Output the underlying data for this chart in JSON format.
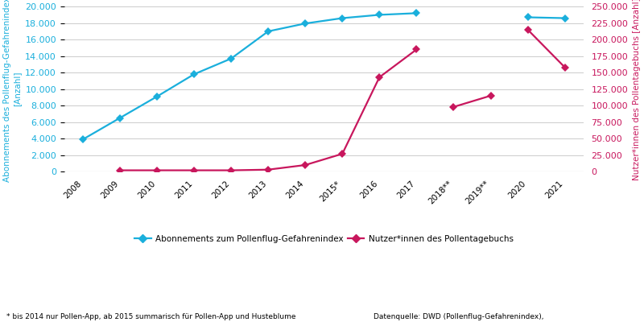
{
  "x_labels": [
    "2008",
    "2009",
    "2010",
    "2011",
    "2012",
    "2013",
    "2014",
    "2015*",
    "2016",
    "2017",
    "2018**",
    "2019**",
    "2020",
    "2021"
  ],
  "blue_segments": [
    {
      "x": [
        0,
        1,
        2,
        3,
        4,
        5,
        6,
        7,
        8,
        9
      ],
      "y": [
        3900,
        6500,
        9100,
        11800,
        13700,
        17000,
        17950,
        18600,
        19000,
        19200
      ]
    },
    {
      "x": [
        12,
        13
      ],
      "y": [
        18700,
        18600
      ]
    }
  ],
  "red_segments": [
    {
      "x": [
        1,
        2,
        3,
        4,
        5,
        6,
        7,
        8,
        9
      ],
      "y": [
        2000,
        2000,
        2000,
        2000,
        3000,
        10000,
        27000,
        143000,
        185000
      ]
    },
    {
      "x": [
        10,
        11
      ],
      "y": [
        98000,
        115000
      ]
    },
    {
      "x": [
        12,
        13
      ],
      "y": [
        215000,
        158000
      ]
    }
  ],
  "left_ylim": [
    0,
    20000
  ],
  "right_ylim": [
    0,
    250000
  ],
  "left_yticks": [
    0,
    2000,
    4000,
    6000,
    8000,
    10000,
    12000,
    14000,
    16000,
    18000,
    20000
  ],
  "right_yticks": [
    0,
    25000,
    50000,
    75000,
    100000,
    125000,
    150000,
    175000,
    200000,
    225000,
    250000
  ],
  "blue_color": "#1AAFDC",
  "red_color": "#C8175D",
  "green_color": "#4AAD36",
  "ylabel_left": "Abonnements des Pollenflug-Gefahrenindex\n[Anzahl]",
  "ylabel_right": "Nutzer*innen des Pollentagebuchs [Anzahl]",
  "legend_blue": "Abonnements zum Pollenflug-Gefahrenindex",
  "legend_red": "Nutzer*innen des Pollentagebuchs",
  "footnote": "* bis 2014 nur Pollen-App, ab 2015 summarisch für Pollen-App und Husteblume",
  "source": "Datenquelle: DWD (Pollenflug-Gefahrenindex),",
  "background_color": "#FFFFFF",
  "n_labels": 14
}
